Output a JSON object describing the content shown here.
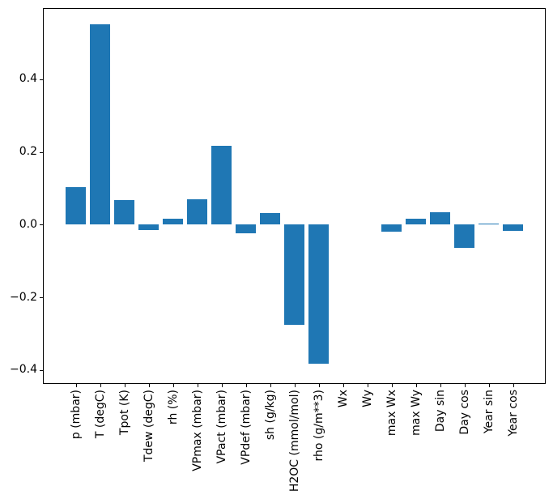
{
  "chart_data": {
    "type": "bar",
    "title": "",
    "xlabel": "",
    "ylabel": "",
    "categories": [
      "p (mbar)",
      "T (degC)",
      "Tpot (K)",
      "Tdew (degC)",
      "rh (%)",
      "VPmax (mbar)",
      "VPact (mbar)",
      "VPdef (mbar)",
      "sh (g/kg)",
      "H2OC (mmol/mol)",
      "rho (g/m**3)",
      "Wx",
      "Wy",
      "max Wx",
      "max Wy",
      "Day sin",
      "Day cos",
      "Year sin",
      "Year cos"
    ],
    "values": [
      0.103,
      0.551,
      0.067,
      -0.015,
      0.016,
      0.07,
      0.218,
      -0.023,
      0.033,
      -0.275,
      -0.382,
      0.0,
      0.0,
      -0.019,
      0.016,
      0.035,
      -0.064,
      0.004,
      -0.016
    ],
    "ylim": [
      -0.438,
      0.596
    ],
    "yticks": [
      0.4,
      0.2,
      0.0,
      -0.2,
      -0.4
    ],
    "ytick_labels": [
      "0.4",
      "0.2",
      "0.0",
      "−0.2",
      "−0.4"
    ],
    "x_tick_rotation": 90,
    "grid": false,
    "legend": null,
    "bar_color": "#1f77b4",
    "spine_color": "#000000",
    "background_color": "#ffffff"
  }
}
